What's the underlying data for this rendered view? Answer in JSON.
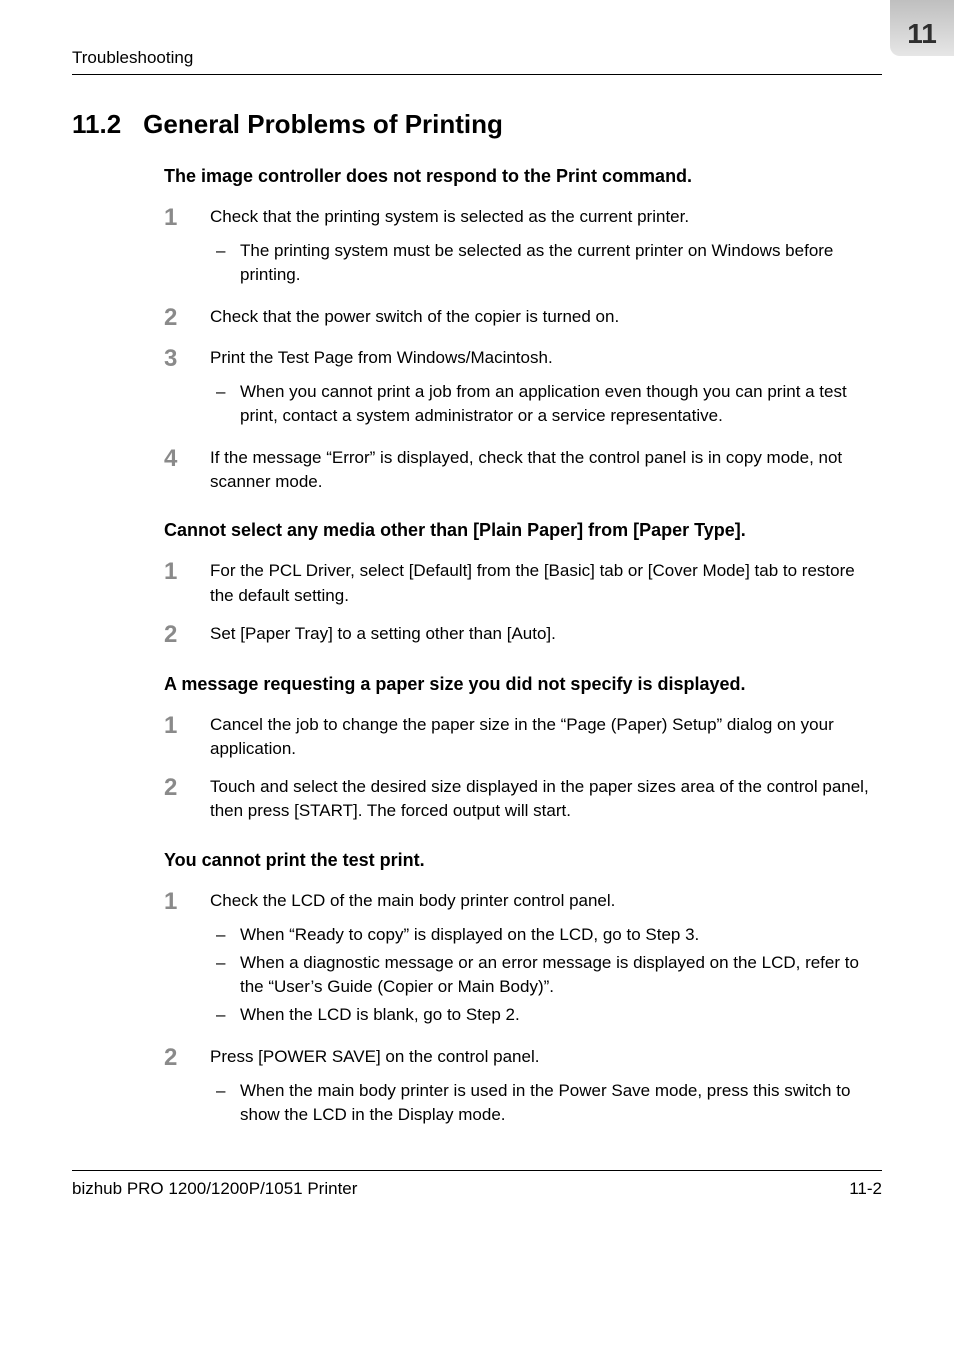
{
  "running_title": "Troubleshooting",
  "corner_tab": "11",
  "section": {
    "number": "11.2",
    "title": "General Problems of Printing"
  },
  "blocks": [
    {
      "heading": "The image controller does not respond to the Print command.",
      "steps": [
        {
          "num": "1",
          "text": "Check that the printing system is selected as the current printer.",
          "subs": [
            "The printing system must be selected as the current printer on Windows before printing."
          ]
        },
        {
          "num": "2",
          "text": "Check that the power switch of the copier is turned on.",
          "subs": []
        },
        {
          "num": "3",
          "text": "Print the Test Page from Windows/Macintosh.",
          "subs": [
            "When you cannot print a job from an application even though you can print a test print, contact a system administrator or a service representative."
          ]
        },
        {
          "num": "4",
          "text": "If the message “Error” is displayed, check that the control panel is in copy mode, not scanner mode.",
          "subs": []
        }
      ]
    },
    {
      "heading": "Cannot select any media other than [Plain Paper] from [Paper Type].",
      "steps": [
        {
          "num": "1",
          "text": "For the PCL Driver, select [Default] from the [Basic] tab or [Cover Mode] tab to restore the default setting.",
          "subs": []
        },
        {
          "num": "2",
          "text": "Set [Paper Tray] to a setting other than [Auto].",
          "subs": []
        }
      ]
    },
    {
      "heading": "A message requesting a paper size you did not specify is displayed.",
      "steps": [
        {
          "num": "1",
          "text": "Cancel the job to change the paper size in the “Page (Paper) Setup” dialog on your application.",
          "subs": []
        },
        {
          "num": "2",
          "text": "Touch and select the desired size displayed in the paper sizes area of the control panel, then press [START]. The forced output will start.",
          "subs": []
        }
      ]
    },
    {
      "heading": "You cannot print the test print.",
      "steps": [
        {
          "num": "1",
          "text": "Check the LCD of the main body printer control panel.",
          "subs": [
            "When “Ready to copy” is displayed on the LCD, go to Step 3.",
            "When a diagnostic message or an error message is displayed on the LCD, refer to the “User’s Guide (Copier or Main Body)”.",
            "When the LCD is blank, go to Step 2."
          ]
        },
        {
          "num": "2",
          "text": "Press [POWER SAVE] on the control panel.",
          "subs": [
            "When the main body printer is used in the Power Save mode, press this switch to show the LCD in the Display mode."
          ]
        }
      ]
    }
  ],
  "footer": {
    "left": "bizhub PRO 1200/1200P/1051 Printer",
    "right": "11-2"
  }
}
